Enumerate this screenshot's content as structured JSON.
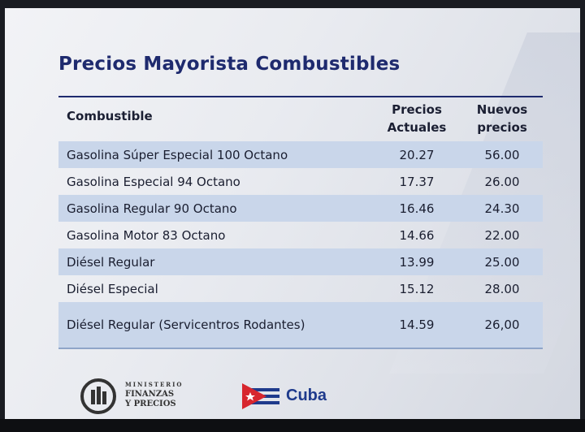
{
  "title": "Precios Mayorista Combustibles",
  "table": {
    "headers": {
      "fuel": "Combustible",
      "current_line1": "Precios",
      "current_line2": "Actuales",
      "new_line1": "Nuevos",
      "new_line2": "precios"
    },
    "rows": [
      {
        "name": "Gasolina Súper Especial 100 Octano",
        "current": "20.27",
        "new": "56.00"
      },
      {
        "name": "Gasolina Especial 94 Octano",
        "current": "17.37",
        "new": "26.00"
      },
      {
        "name": "Gasolina Regular 90 Octano",
        "current": "16.46",
        "new": "24.30"
      },
      {
        "name": "Gasolina Motor 83 Octano",
        "current": "14.66",
        "new": "22.00"
      },
      {
        "name": "Diésel Regular",
        "current": "13.99",
        "new": "25.00"
      },
      {
        "name": "Diésel Especial",
        "current": "15.12",
        "new": "28.00"
      },
      {
        "name": "Diésel Regular (Servicentros Rodantes)",
        "current": "14.59",
        "new": "26,00"
      }
    ]
  },
  "footer": {
    "ministry_small": "MINISTERIO",
    "ministry_line1": "FINANZAS",
    "ministry_line2": "Y PRECIOS",
    "cuba_label": "Cuba"
  },
  "colors": {
    "title": "#1e2a6e",
    "row_shade": "#c9d6ea",
    "flag_blue": "#1e3a8c",
    "flag_red": "#d7262e"
  }
}
